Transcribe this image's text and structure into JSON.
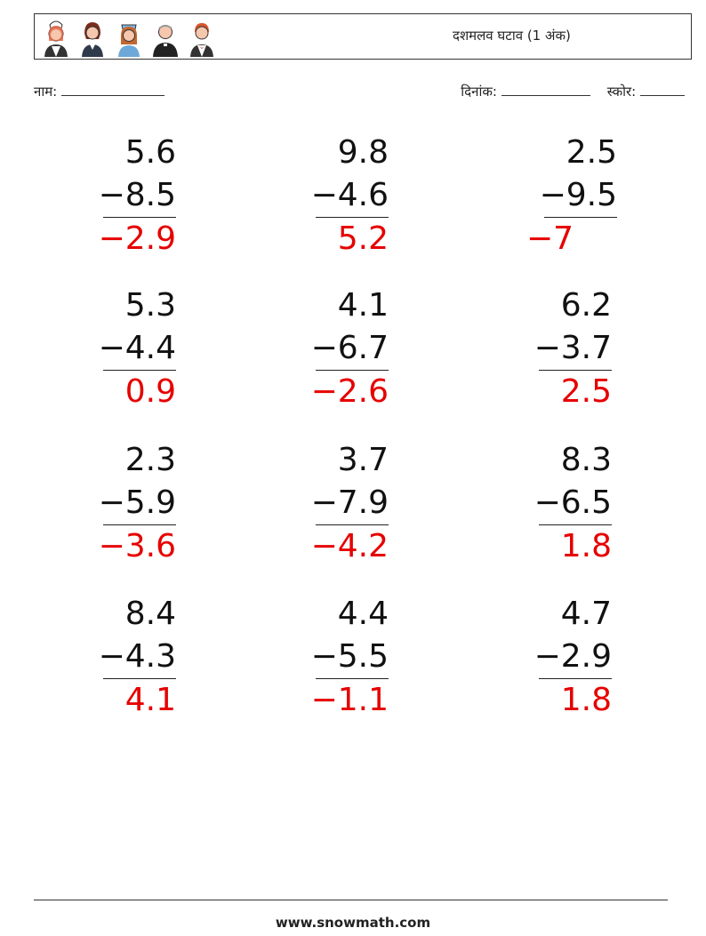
{
  "header": {
    "title": "दशमलव घटाव (1 अंक)",
    "avatars": [
      "chef-avatar-icon",
      "woman-avatar-icon",
      "nurse-avatar-icon",
      "priest-avatar-icon",
      "waiter-avatar-icon"
    ]
  },
  "meta": {
    "name_label": "नाम:",
    "date_label": "दिनांक:",
    "score_label": "स्कोर:"
  },
  "problems": [
    {
      "top": "5.6",
      "bottom": "−8.5",
      "answer": "−2.9"
    },
    {
      "top": "9.8",
      "bottom": "−4.6",
      "answer": "5.2"
    },
    {
      "top": "2.5",
      "bottom": "−9.5",
      "answer": "−7"
    },
    {
      "top": "5.3",
      "bottom": "−4.4",
      "answer": "0.9"
    },
    {
      "top": "4.1",
      "bottom": "−6.7",
      "answer": "−2.6"
    },
    {
      "top": "6.2",
      "bottom": "−3.7",
      "answer": "2.5"
    },
    {
      "top": "2.3",
      "bottom": "−5.9",
      "answer": "−3.6"
    },
    {
      "top": "3.7",
      "bottom": "−7.9",
      "answer": "−4.2"
    },
    {
      "top": "8.3",
      "bottom": "−6.5",
      "answer": "1.8"
    },
    {
      "top": "8.4",
      "bottom": "−4.3",
      "answer": "4.1"
    },
    {
      "top": "4.4",
      "bottom": "−5.5",
      "answer": "−1.1"
    },
    {
      "top": "4.7",
      "bottom": "−2.9",
      "answer": "1.8"
    }
  ],
  "footer": {
    "site": "www.snowmath.com"
  }
}
